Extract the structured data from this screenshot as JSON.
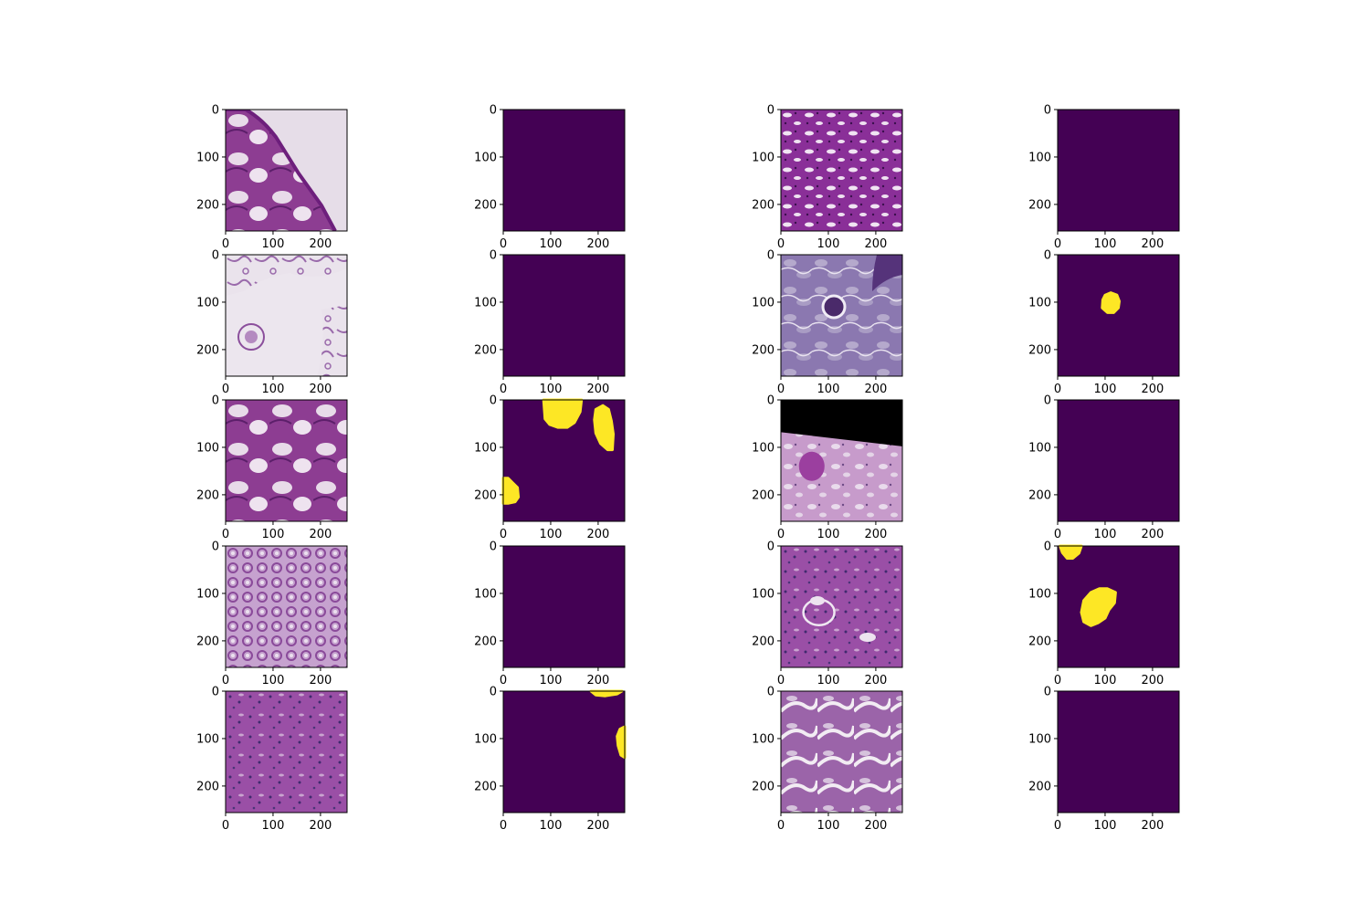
{
  "figure": {
    "rows": 5,
    "cols": 4,
    "x_ticks": [
      "0",
      "100",
      "200"
    ],
    "y_ticks": [
      "0",
      "100",
      "200"
    ],
    "tick_values": [
      0,
      100,
      200
    ],
    "axis_range": [
      0,
      256
    ],
    "colors": {
      "mask_background": "#440154",
      "mask_foreground": "#fde725",
      "tissue_dark": "#7a2f8e",
      "tissue_light": "#e8dcea",
      "black": "#000000"
    },
    "panels": [
      {
        "kind": "image",
        "style": "edge",
        "label": "tissue-patch"
      },
      {
        "kind": "mask",
        "blobs": []
      },
      {
        "kind": "image",
        "style": "dense",
        "label": "tissue-patch"
      },
      {
        "kind": "mask",
        "blobs": []
      },
      {
        "kind": "image",
        "style": "sparse",
        "label": "tissue-patch"
      },
      {
        "kind": "mask",
        "blobs": []
      },
      {
        "kind": "image",
        "style": "blue",
        "label": "tissue-patch"
      },
      {
        "kind": "mask",
        "blobs": [
          {
            "points": [
              [
                95,
                95
              ],
              [
                100,
                85
              ],
              [
                112,
                80
              ],
              [
                125,
                85
              ],
              [
                130,
                98
              ],
              [
                128,
                112
              ],
              [
                118,
                122
              ],
              [
                105,
                122
              ],
              [
                94,
                112
              ]
            ]
          }
        ]
      },
      {
        "kind": "image",
        "style": "large",
        "label": "tissue-patch"
      },
      {
        "kind": "mask",
        "blobs": [
          {
            "points": [
              [
                85,
                0
              ],
              [
                165,
                0
              ],
              [
                162,
                25
              ],
              [
                150,
                48
              ],
              [
                135,
                58
              ],
              [
                115,
                58
              ],
              [
                98,
                52
              ],
              [
                88,
                40
              ]
            ]
          },
          {
            "points": [
              [
                195,
                20
              ],
              [
                210,
                12
              ],
              [
                222,
                20
              ],
              [
                228,
                45
              ],
              [
                232,
                72
              ],
              [
                230,
                105
              ],
              [
                220,
                105
              ],
              [
                205,
                92
              ],
              [
                195,
                70
              ],
              [
                192,
                42
              ]
            ]
          },
          {
            "points": [
              [
                0,
                165
              ],
              [
                10,
                165
              ],
              [
                20,
                175
              ],
              [
                30,
                185
              ],
              [
                32,
                205
              ],
              [
                25,
                215
              ],
              [
                10,
                218
              ],
              [
                0,
                218
              ]
            ]
          }
        ]
      },
      {
        "kind": "image",
        "style": "rotated",
        "label": "tissue-patch"
      },
      {
        "kind": "mask",
        "blobs": []
      },
      {
        "kind": "image",
        "style": "fine",
        "label": "tissue-patch"
      },
      {
        "kind": "mask",
        "blobs": []
      },
      {
        "kind": "image",
        "style": "glom",
        "label": "tissue-patch"
      },
      {
        "kind": "mask",
        "blobs": [
          {
            "points": [
              [
                5,
                0
              ],
              [
                50,
                0
              ],
              [
                45,
                15
              ],
              [
                32,
                26
              ],
              [
                20,
                26
              ],
              [
                10,
                14
              ]
            ]
          },
          {
            "points": [
              [
                55,
                115
              ],
              [
                70,
                98
              ],
              [
                88,
                90
              ],
              [
                105,
                90
              ],
              [
                122,
                98
              ],
              [
                120,
                120
              ],
              [
                108,
                135
              ],
              [
                100,
                152
              ],
              [
                85,
                162
              ],
              [
                70,
                168
              ],
              [
                55,
                160
              ],
              [
                50,
                140
              ]
            ]
          }
        ]
      },
      {
        "kind": "image",
        "style": "stroma",
        "label": "tissue-patch"
      },
      {
        "kind": "mask",
        "blobs": [
          {
            "points": [
              [
                185,
                0
              ],
              [
                250,
                0
              ],
              [
                240,
                6
              ],
              [
                215,
                10
              ],
              [
                195,
                8
              ]
            ]
          },
          {
            "points": [
              [
                256,
                75
              ],
              [
                246,
                80
              ],
              [
                240,
                95
              ],
              [
                242,
                115
              ],
              [
                248,
                135
              ],
              [
                256,
                140
              ]
            ]
          }
        ]
      },
      {
        "kind": "image",
        "style": "lumen",
        "label": "tissue-patch"
      },
      {
        "kind": "mask",
        "blobs": []
      }
    ]
  }
}
